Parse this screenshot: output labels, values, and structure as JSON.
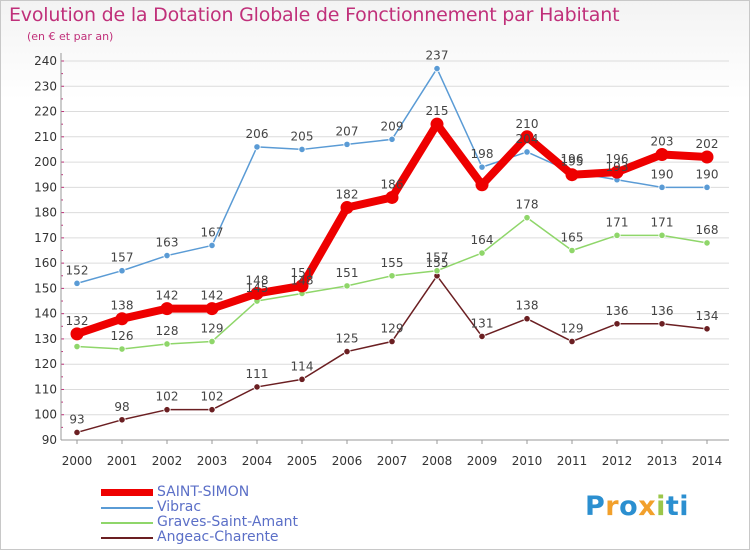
{
  "title": "Evolution de la Dotation Globale de Fonctionnement par Habitant",
  "subtitle": "(en € et par an)",
  "brand": {
    "letters": [
      "P",
      "r",
      "o",
      "x",
      "i",
      "ti"
    ]
  },
  "colors": {
    "title": "#c0307a",
    "legend_text": "#5b6fc7",
    "grid": "#dcdcdc",
    "axis_text": "#333333",
    "value_text": "#444444"
  },
  "chart_data": {
    "type": "line",
    "title": "Evolution de la Dotation Globale de Fonctionnement par Habitant",
    "subtitle": "(en € et par an)",
    "xlabel": "",
    "ylabel": "",
    "ylim": [
      90,
      240
    ],
    "yticks": [
      90,
      100,
      110,
      120,
      130,
      140,
      150,
      160,
      170,
      180,
      190,
      200,
      210,
      220,
      230,
      240
    ],
    "grid": true,
    "legend_position": "bottom-left",
    "categories": [
      "2000",
      "2001",
      "2002",
      "2003",
      "2004",
      "2005",
      "2006",
      "2007",
      "2008",
      "2009",
      "2010",
      "2011",
      "2012",
      "2013",
      "2014"
    ],
    "series": [
      {
        "name": "Angeac-Charente",
        "color": "#6b1f22",
        "values": [
          93,
          98,
          102,
          102,
          111,
          114,
          125,
          129,
          155,
          131,
          138,
          129,
          136,
          136,
          134
        ],
        "labels": [
          "93",
          "98",
          "102",
          "102",
          "111",
          "114",
          "125",
          "129",
          "155",
          "131",
          "138",
          "129",
          "136",
          "136",
          "134"
        ]
      },
      {
        "name": "Graves-Saint-Amant",
        "color": "#8fd66a",
        "values": [
          127,
          126,
          128,
          129,
          145,
          148,
          151,
          155,
          157,
          164,
          178,
          165,
          171,
          171,
          168
        ],
        "labels": [
          "",
          "126",
          "128",
          "129",
          "145",
          "148",
          "151",
          "155",
          "157",
          "164",
          "178",
          "165",
          "171",
          "171",
          "168"
        ]
      },
      {
        "name": "Vibrac",
        "color": "#5a9bd5",
        "values": [
          152,
          157,
          163,
          167,
          206,
          205,
          207,
          209,
          237,
          198,
          204,
          196,
          193,
          190,
          190
        ],
        "labels": [
          "152",
          "157",
          "163",
          "167",
          "206",
          "205",
          "207",
          "209",
          "237",
          "198",
          "204",
          "196",
          "193",
          "190",
          "190"
        ]
      },
      {
        "name": "SAINT-SIMON",
        "color": "#ee0000",
        "values": [
          132,
          138,
          142,
          142,
          148,
          151,
          182,
          186,
          215,
          191,
          210,
          195,
          196,
          203,
          202
        ],
        "labels": [
          "132",
          "138",
          "142",
          "142",
          "148",
          "151",
          "182",
          "186",
          "215",
          "",
          "210",
          "195",
          "196",
          "203",
          "202"
        ]
      }
    ],
    "legend": [
      "SAINT-SIMON",
      "Vibrac",
      "Graves-Saint-Amant",
      "Angeac-Charente"
    ]
  }
}
